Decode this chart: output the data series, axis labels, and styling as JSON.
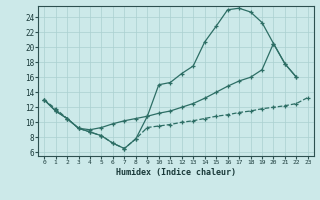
{
  "bg_color": "#cce9e9",
  "grid_color": "#aad0d0",
  "line_color": "#2d6e65",
  "xlabel": "Humidex (Indice chaleur)",
  "xlim": [
    -0.5,
    23.5
  ],
  "ylim": [
    5.5,
    25.5
  ],
  "xticks": [
    0,
    1,
    2,
    3,
    4,
    5,
    6,
    7,
    8,
    9,
    10,
    11,
    12,
    13,
    14,
    15,
    16,
    17,
    18,
    19,
    20,
    21,
    22,
    23
  ],
  "yticks": [
    6,
    8,
    10,
    12,
    14,
    16,
    18,
    20,
    22,
    24
  ],
  "curve1_x": [
    0,
    1,
    2,
    3,
    4,
    5,
    6,
    7,
    8,
    9,
    10,
    11,
    12,
    13,
    14,
    15,
    16,
    17,
    18,
    19,
    20,
    21,
    22
  ],
  "curve1_y": [
    13.0,
    11.5,
    10.5,
    9.2,
    8.7,
    8.2,
    7.2,
    6.5,
    7.8,
    10.8,
    15.0,
    15.3,
    16.5,
    17.5,
    20.7,
    22.8,
    25.0,
    25.2,
    24.7,
    23.3,
    20.5,
    17.8,
    16.0
  ],
  "curve2_x": [
    0,
    1,
    2,
    3,
    4,
    5,
    6,
    7,
    8,
    9,
    10,
    11,
    12,
    13,
    14,
    15,
    16,
    17,
    18,
    19,
    20,
    21,
    22
  ],
  "curve2_y": [
    13.0,
    11.5,
    10.5,
    9.2,
    9.0,
    9.3,
    9.8,
    10.2,
    10.5,
    10.8,
    11.2,
    11.5,
    12.0,
    12.5,
    13.2,
    14.0,
    14.8,
    15.5,
    16.0,
    17.0,
    20.5,
    17.8,
    16.0
  ],
  "curve3_x": [
    0,
    1,
    2,
    3,
    4,
    5,
    6,
    7,
    8,
    9,
    10,
    11,
    12,
    13,
    14,
    15,
    16,
    17,
    18,
    19,
    20,
    21,
    22,
    23
  ],
  "curve3_y": [
    13.0,
    11.8,
    10.5,
    9.2,
    8.7,
    8.2,
    7.2,
    6.5,
    7.8,
    9.3,
    9.5,
    9.7,
    10.0,
    10.2,
    10.5,
    10.8,
    11.0,
    11.3,
    11.5,
    11.8,
    12.0,
    12.2,
    12.5,
    13.3
  ]
}
